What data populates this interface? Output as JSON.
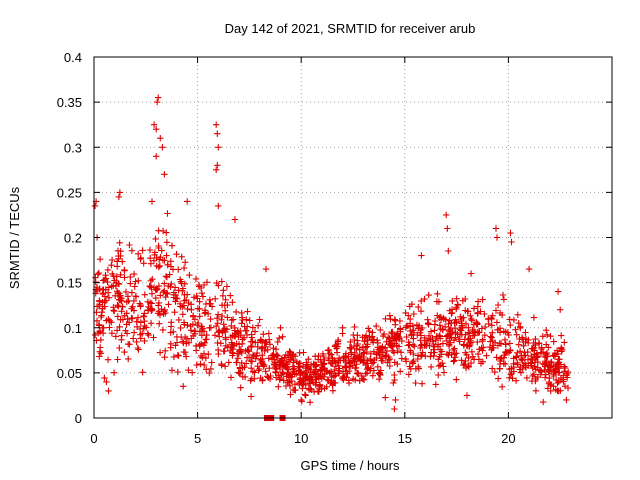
{
  "chart_data": {
    "type": "scatter",
    "title": "Day 142 of 2021, SRMTID for receiver arub",
    "xlabel": "GPS time / hours",
    "ylabel": "SRMTID / TECUs",
    "xlim": [
      0,
      25
    ],
    "ylim": [
      0,
      0.4
    ],
    "xticks": [
      0,
      5,
      10,
      15,
      20
    ],
    "xtick_labels": [
      "0",
      "5",
      "10",
      "15",
      "20"
    ],
    "yticks": [
      0,
      0.05,
      0.1,
      0.15,
      0.2,
      0.25,
      0.3,
      0.35,
      0.4
    ],
    "ytick_labels": [
      "0",
      "0.05",
      "0.1",
      "0.15",
      "0.2",
      "0.25",
      "0.3",
      "0.35",
      "0.4"
    ],
    "grid": true,
    "series_color": "#e00000",
    "marker": "plus",
    "envelope": {
      "description": "approximate mean and spread of SRMTID vs time (hours)",
      "x": [
        0,
        1,
        2,
        3,
        4,
        5,
        6,
        7,
        8,
        9,
        10,
        11,
        12,
        13,
        14,
        15,
        16,
        17,
        18,
        19,
        20,
        21,
        22,
        23
      ],
      "center": [
        0.12,
        0.13,
        0.12,
        0.15,
        0.12,
        0.1,
        0.1,
        0.08,
        0.07,
        0.06,
        0.045,
        0.05,
        0.06,
        0.07,
        0.07,
        0.09,
        0.09,
        0.09,
        0.1,
        0.09,
        0.08,
        0.07,
        0.06,
        0.05
      ],
      "spread": [
        0.045,
        0.05,
        0.05,
        0.06,
        0.05,
        0.04,
        0.04,
        0.03,
        0.025,
        0.02,
        0.018,
        0.02,
        0.022,
        0.025,
        0.025,
        0.035,
        0.035,
        0.035,
        0.035,
        0.035,
        0.03,
        0.03,
        0.025,
        0.02
      ]
    },
    "points": [
      [
        0.05,
        0.235
      ],
      [
        0.1,
        0.24
      ],
      [
        0.15,
        0.2
      ],
      [
        0.4,
        0.1
      ],
      [
        0.6,
        0.04
      ],
      [
        0.7,
        0.03
      ],
      [
        1.2,
        0.245
      ],
      [
        1.25,
        0.25
      ],
      [
        2.9,
        0.325
      ],
      [
        3.0,
        0.32
      ],
      [
        3.05,
        0.35
      ],
      [
        3.1,
        0.355
      ],
      [
        3.2,
        0.31
      ],
      [
        3.3,
        0.3
      ],
      [
        3.4,
        0.27
      ],
      [
        3.0,
        0.29
      ],
      [
        2.8,
        0.24
      ],
      [
        4.5,
        0.24
      ],
      [
        5.9,
        0.325
      ],
      [
        5.95,
        0.315
      ],
      [
        6.0,
        0.3
      ],
      [
        5.95,
        0.28
      ],
      [
        5.9,
        0.275
      ],
      [
        6.0,
        0.235
      ],
      [
        6.8,
        0.22
      ],
      [
        8.3,
        0.165
      ],
      [
        9.0,
        0.1
      ],
      [
        9.1,
        0.09
      ],
      [
        10.0,
        0.02
      ],
      [
        14.5,
        0.01
      ],
      [
        14.55,
        0.02
      ],
      [
        15.8,
        0.18
      ],
      [
        17.0,
        0.225
      ],
      [
        17.05,
        0.21
      ],
      [
        17.1,
        0.185
      ],
      [
        17.8,
        0.13
      ],
      [
        18.2,
        0.16
      ],
      [
        19.4,
        0.21
      ],
      [
        19.45,
        0.2
      ],
      [
        20.1,
        0.205
      ],
      [
        20.15,
        0.195
      ],
      [
        21.0,
        0.165
      ],
      [
        22.4,
        0.14
      ],
      [
        22.5,
        0.12
      ],
      [
        18.0,
        0.025
      ],
      [
        22.8,
        0.02
      ],
      [
        3.5,
        0.18
      ],
      [
        12.0,
        0.1
      ]
    ],
    "baseline_markers_x": [
      8.35,
      8.55,
      9.1
    ]
  }
}
